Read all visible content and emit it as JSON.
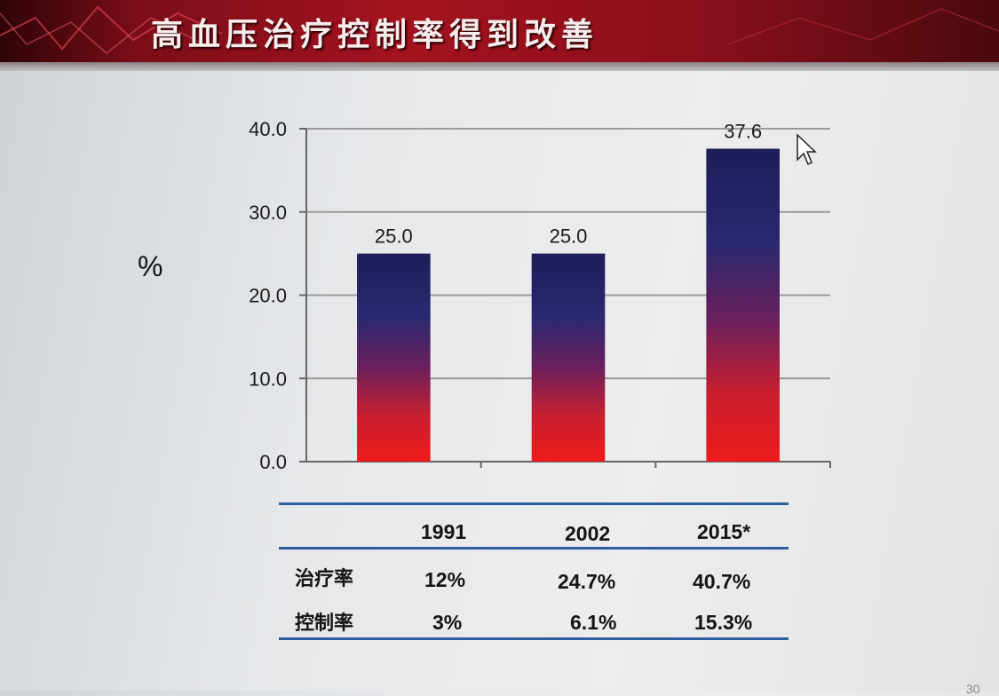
{
  "slide": {
    "title": "高血压治疗控制率得到改善",
    "page_number": "30"
  },
  "colors": {
    "banner": "#9e111e",
    "bar_top": "#1f1f5c",
    "bar_bottom": "#e81a1a",
    "table_rule": "#2d5f9e"
  },
  "chart_data": {
    "type": "bar",
    "ylabel": "%",
    "xlabel": "",
    "categories": [
      "1991",
      "2002",
      "2015*"
    ],
    "values": [
      25.0,
      25.0,
      37.6
    ],
    "value_labels": [
      "25.0",
      "25.0",
      "37.6"
    ],
    "ylim": [
      0,
      40
    ],
    "yticks": [
      "0.0",
      "10.0",
      "20.0",
      "30.0",
      "40.0"
    ],
    "grid": true,
    "legend": "none"
  },
  "table": {
    "headers": [
      "1991",
      "2002",
      "2015*"
    ],
    "rows": [
      {
        "label": "治疗率",
        "values": [
          "12%",
          "24.7%",
          "40.7%"
        ]
      },
      {
        "label": "控制率",
        "values": [
          "3%",
          "6.1%",
          "15.3%"
        ]
      }
    ]
  }
}
